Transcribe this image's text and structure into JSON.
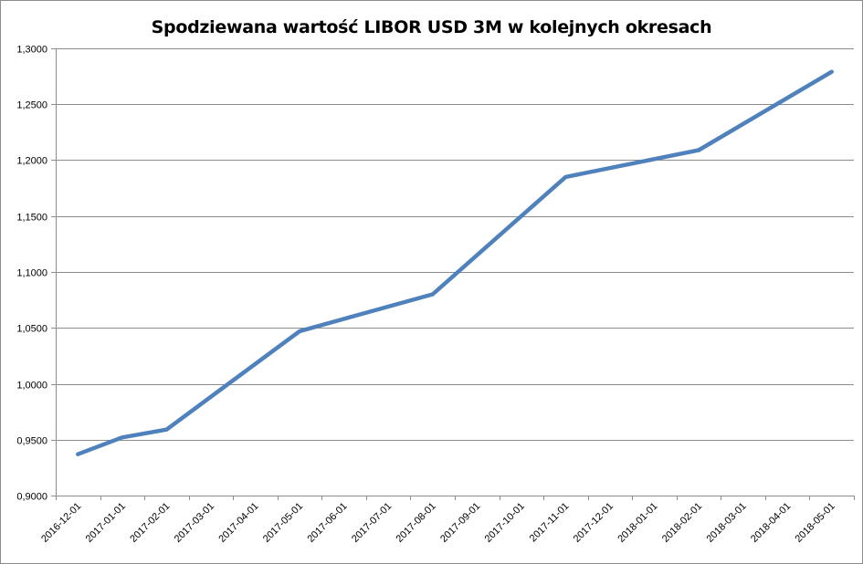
{
  "chart_data": {
    "type": "line",
    "title": "Spodziewana wartość LIBOR USD 3M w kolejnych okresach",
    "xlabel": "",
    "ylabel": "",
    "categories": [
      "2016-12-01",
      "2017-01-01",
      "2017-02-01",
      "2017-03-01",
      "2017-04-01",
      "2017-05-01",
      "2017-06-01",
      "2017-07-01",
      "2017-08-01",
      "2017-09-01",
      "2017-10-01",
      "2017-11-01",
      "2017-12-01",
      "2018-01-01",
      "2018-02-01",
      "2018-03-01",
      "2018-04-01",
      "2018-05-01"
    ],
    "series": [
      {
        "color": "#4f81bd",
        "x": [
          "2016-12-01",
          "2017-01-01",
          "2017-02-01",
          "2017-05-01",
          "2017-08-01",
          "2017-11-01",
          "2018-02-01",
          "2018-05-01"
        ],
        "values": [
          0.937,
          0.952,
          0.959,
          1.047,
          1.08,
          1.185,
          1.209,
          1.279
        ]
      }
    ],
    "ylim": [
      0.9,
      1.3
    ],
    "yticks": [
      "0,9000",
      "0,9500",
      "1,0000",
      "1,0500",
      "1,1000",
      "1,1500",
      "1,2000",
      "1,2500",
      "1,3000"
    ],
    "grid": true,
    "legend": "none"
  }
}
